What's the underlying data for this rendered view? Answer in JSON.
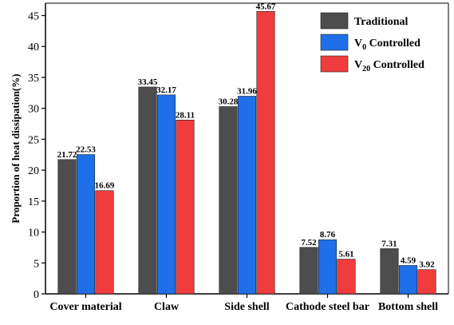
{
  "chart_data": {
    "type": "bar",
    "categories": [
      "Cover material",
      "Claw",
      "Side shell",
      "Cathode steel bar",
      "Bottom shell"
    ],
    "series": [
      {
        "name": "Traditional",
        "color": "#4d4d4d",
        "values": [
          21.72,
          33.45,
          30.28,
          7.52,
          7.31
        ]
      },
      {
        "name": "V0 Controlled",
        "name_base": "V",
        "name_sub": "0",
        "name_rest": " Controlled",
        "color": "#1f6fe8",
        "values": [
          22.53,
          32.17,
          31.96,
          8.76,
          4.59
        ]
      },
      {
        "name": "V20 Controlled",
        "name_base": "V",
        "name_sub": "20",
        "name_rest": " Controlled",
        "color": "#f03c3c",
        "values": [
          16.69,
          28.11,
          45.67,
          5.61,
          3.92
        ]
      }
    ],
    "value_labels": [
      [
        "21.72",
        "33.45",
        "30.28",
        "7.52",
        "7.31"
      ],
      [
        "22.53",
        "32.17",
        "31.96",
        "8.76",
        "4.59"
      ],
      [
        "16.69",
        "28.11",
        "45.67",
        "5.61",
        "3.92"
      ]
    ],
    "ylabel": "Proportion of heat dissipation(%)",
    "xlabel": "",
    "title": "",
    "ylim": [
      0,
      47
    ],
    "yticks": [
      "0",
      "5",
      "10",
      "15",
      "20",
      "25",
      "30",
      "35",
      "40",
      "45"
    ],
    "legend_position": "top-right",
    "grid": false
  }
}
